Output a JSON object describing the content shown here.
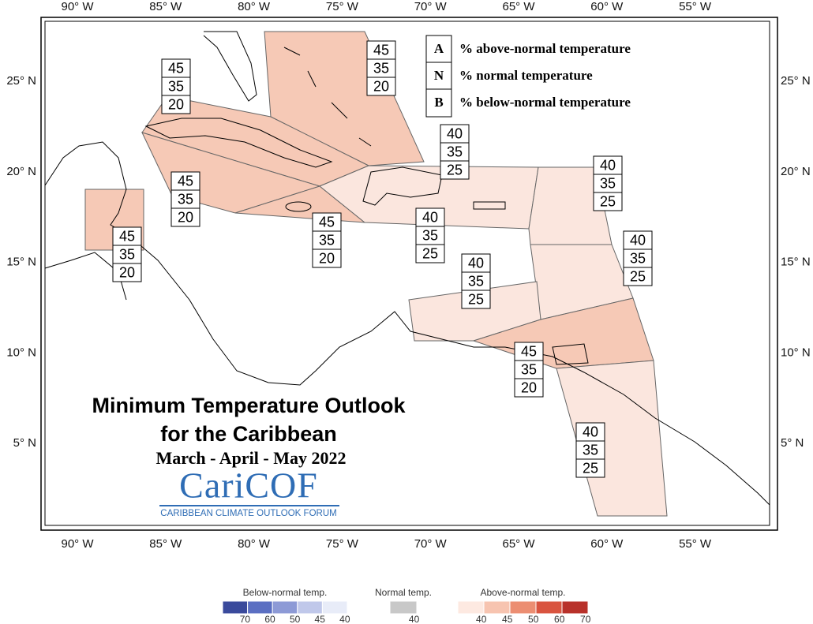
{
  "axes": {
    "top": [
      "90° W",
      "85° W",
      "80° W",
      "75° W",
      "70° W",
      "65° W",
      "60° W",
      "55° W"
    ],
    "bottom": [
      "90° W",
      "85° W",
      "80° W",
      "75° W",
      "70° W",
      "65° W",
      "60° W",
      "55° W"
    ],
    "left": [
      "25° N",
      "20° N",
      "15° N",
      "10° N",
      "5° N"
    ],
    "right": [
      "25° N",
      "20° N",
      "15° N",
      "10° N",
      "5° N"
    ]
  },
  "title": "Minimum Temperature Outlook",
  "subtitle": "for the Caribbean",
  "period": "March - April - May 2022",
  "logo": {
    "name": "CariCOF",
    "tagline": "CARIBBEAN CLIMATE OUTLOOK FORUM"
  },
  "key": [
    {
      "letter": "A",
      "text": "% above-normal temperature"
    },
    {
      "letter": "N",
      "text": "% normal temperature"
    },
    {
      "letter": "B",
      "text": "% below-normal temperature"
    }
  ],
  "zones": [
    {
      "above": 45,
      "normal": 35,
      "below": 20
    },
    {
      "above": 45,
      "normal": 35,
      "below": 20
    },
    {
      "above": 40,
      "normal": 35,
      "below": 25
    },
    {
      "above": 45,
      "normal": 35,
      "below": 20
    },
    {
      "above": 45,
      "normal": 35,
      "below": 20
    },
    {
      "above": 45,
      "normal": 35,
      "below": 20
    },
    {
      "above": 40,
      "normal": 35,
      "below": 25
    },
    {
      "above": 40,
      "normal": 35,
      "below": 25
    },
    {
      "above": 40,
      "normal": 35,
      "below": 25
    },
    {
      "above": 40,
      "normal": 35,
      "below": 25
    },
    {
      "above": 45,
      "normal": 35,
      "below": 20
    },
    {
      "above": 40,
      "normal": 35,
      "below": 25
    }
  ],
  "legend": {
    "below": {
      "title": "Below-normal temp.",
      "ticks": [
        70,
        60,
        50,
        45,
        40
      ],
      "colors": [
        "#3a4a9c",
        "#5b6fc2",
        "#8d9ad6",
        "#c0c8ea",
        "#e8ecf8"
      ]
    },
    "normal": {
      "title": "Normal temp.",
      "ticks": [
        40
      ],
      "colors": [
        "#c8c8c8"
      ]
    },
    "above": {
      "title": "Above-normal temp.",
      "ticks": [
        40,
        45,
        50,
        60,
        70
      ],
      "colors": [
        "#fde9e1",
        "#f7c4b0",
        "#ec8e72",
        "#d9543f",
        "#b8312a"
      ]
    }
  }
}
